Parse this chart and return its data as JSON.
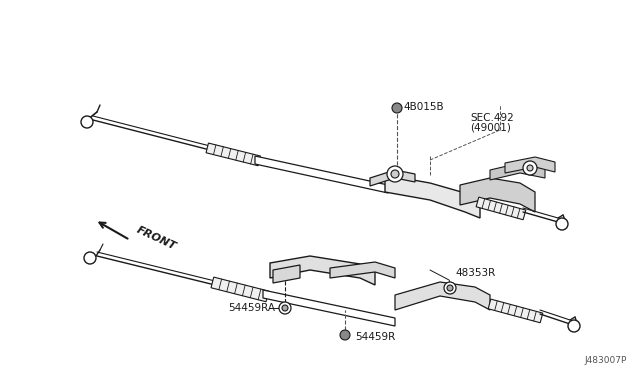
{
  "bg_color": "#ffffff",
  "part_id": "J483007P",
  "line_color": "#1a1a1a",
  "text_color": "#1a1a1a",
  "fig_width": 6.4,
  "fig_height": 3.72,
  "dpi": 100,
  "xlim": [
    0,
    640
  ],
  "ylim": [
    0,
    372
  ]
}
